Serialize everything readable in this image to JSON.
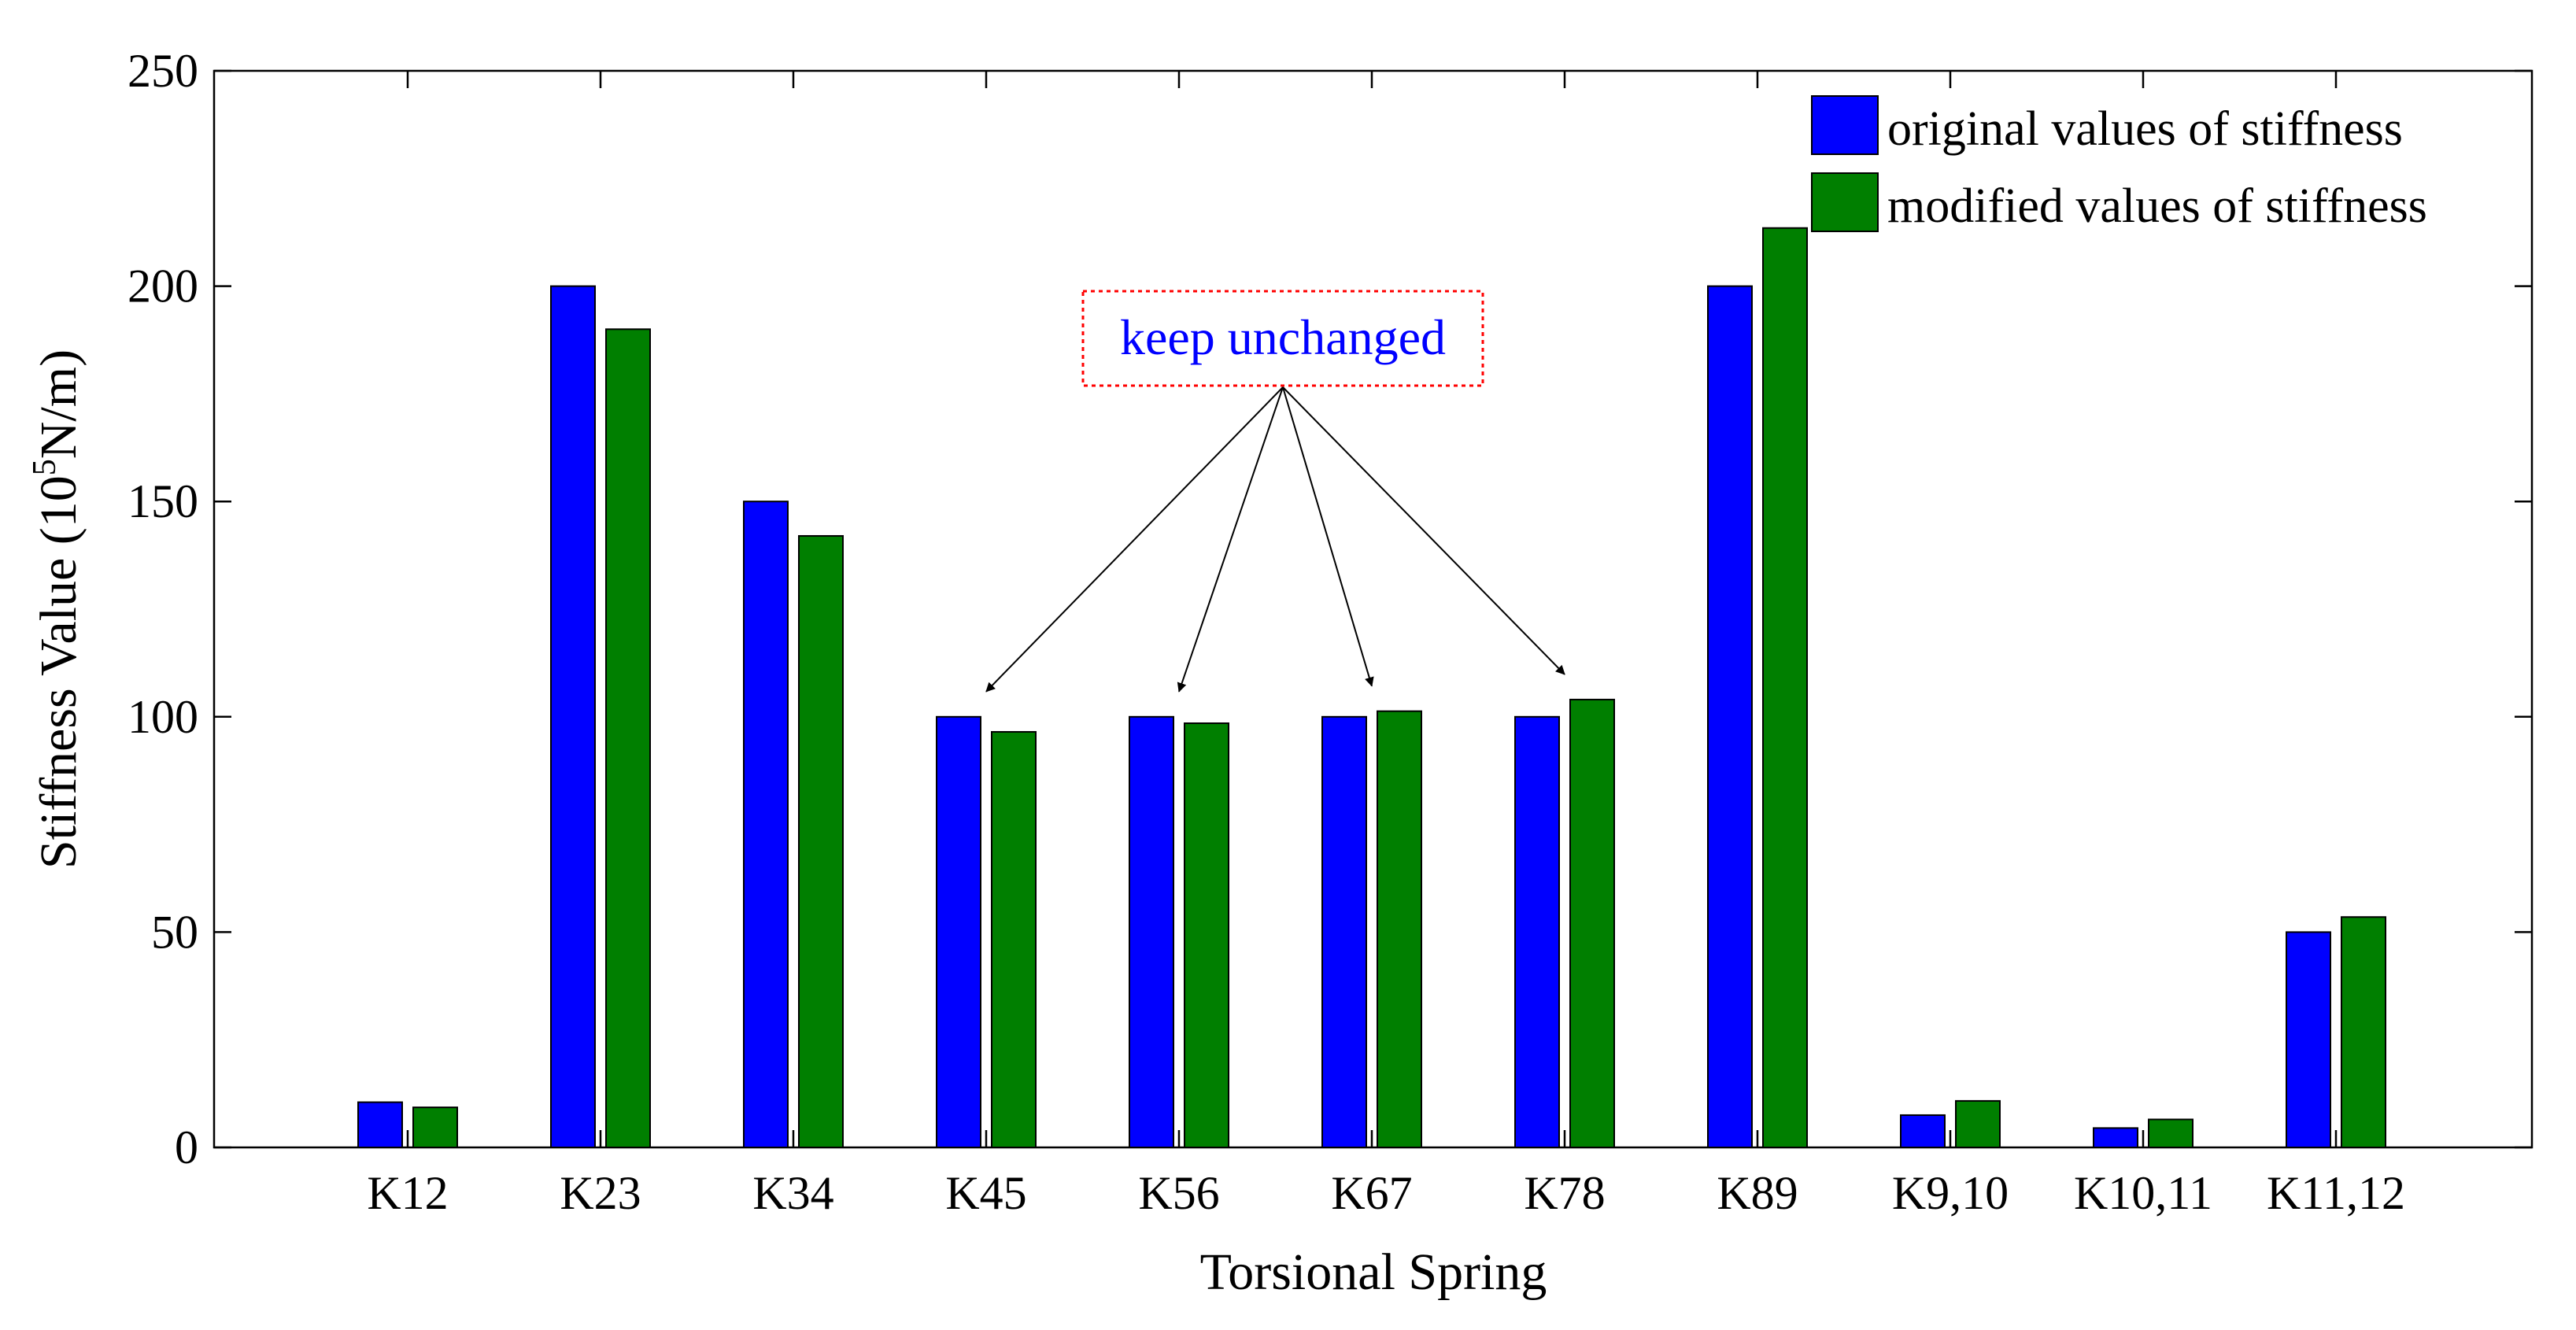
{
  "chart_data": {
    "type": "bar",
    "xlabel": "Torsional Spring",
    "ylabel": {
      "prefix": "Stiffness Value (10",
      "superscript": "5",
      "suffix": "N/m)"
    },
    "ylim": [
      0,
      250
    ],
    "yticks": [
      "0",
      "50",
      "100",
      "150",
      "200",
      "250"
    ],
    "grid": false,
    "legend_position": "top-right",
    "categories": [
      "K12",
      "K23",
      "K34",
      "K45",
      "K56",
      "K67",
      "K78",
      "K89",
      "K9,10",
      "K10,11",
      "K11,12"
    ],
    "series": [
      {
        "name": "original values of stiffness",
        "color": "#0000ff",
        "values": [
          10.5,
          200,
          150,
          100,
          100,
          100,
          100,
          200,
          7.5,
          4.5,
          50
        ]
      },
      {
        "name": "modified values of stiffness",
        "color": "#007f00",
        "values": [
          9.3,
          190,
          142,
          96.5,
          98.5,
          101.3,
          104,
          213.5,
          10.8,
          6.5,
          53.5
        ]
      }
    ],
    "annotation": {
      "text": "keep unchanged",
      "text_color": "#0000ff",
      "border_color": "#ff0000",
      "targets": [
        "K45",
        "K56",
        "K67",
        "K78"
      ]
    }
  }
}
